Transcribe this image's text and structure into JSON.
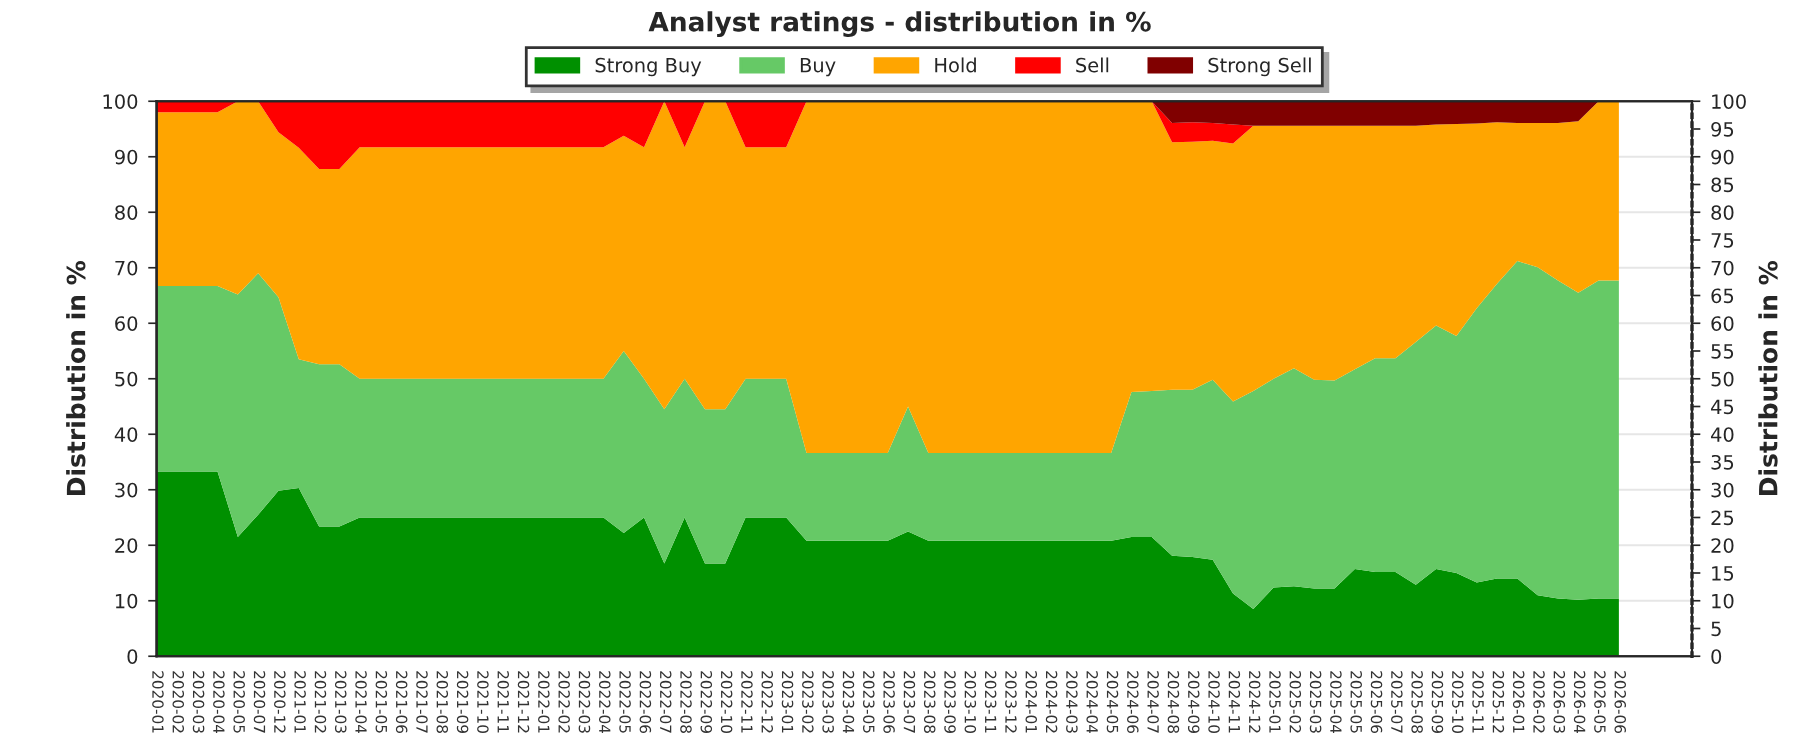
{
  "chart_data": {
    "type": "area",
    "stacked": true,
    "title": "Analyst ratings - distribution in %",
    "ylabel": "Distribution in %",
    "y2label": "Distribution in %",
    "categories": [
      "2020-01",
      "2020-02",
      "2020-03",
      "2020-04",
      "2020-05",
      "2020-07",
      "2020-12",
      "2021-01",
      "2021-02",
      "2021-03",
      "2021-04",
      "2021-05",
      "2021-06",
      "2021-07",
      "2021-08",
      "2021-09",
      "2021-10",
      "2021-11",
      "2021-12",
      "2022-01",
      "2022-02",
      "2022-03",
      "2022-04",
      "2022-05",
      "2022-06",
      "2022-07",
      "2022-08",
      "2022-09",
      "2022-10",
      "2022-11",
      "2022-12",
      "2023-01",
      "2023-02",
      "2023-03",
      "2023-04",
      "2023-05",
      "2023-06",
      "2023-07",
      "2023-08",
      "2023-09",
      "2023-10",
      "2023-11",
      "2023-12",
      "2024-01",
      "2024-02",
      "2024-03",
      "2024-04",
      "2024-05",
      "2024-06",
      "2024-07",
      "2024-08",
      "2024-09",
      "2024-10",
      "2024-11",
      "2024-12",
      "2025-01",
      "2025-02",
      "2025-03",
      "2025-04",
      "2025-05",
      "2025-06",
      "2025-07",
      "2025-08",
      "2025-09",
      "2025-10",
      "2025-11",
      "2025-12",
      "2026-01",
      "2026-02",
      "2026-03",
      "2026-04",
      "2026-05",
      "2026-06"
    ],
    "series": [
      {
        "name": "Strong Buy",
        "color": "#009000",
        "values": [
          33.3,
          33.3,
          33.3,
          33.3,
          21.5,
          25.5,
          29.8,
          30.3,
          23.4,
          23.4,
          25,
          25,
          25,
          25,
          25,
          25,
          25,
          25,
          25,
          25,
          25,
          25,
          25,
          22.2,
          25,
          16.7,
          25,
          16.7,
          16.7,
          25,
          25,
          25,
          20.8,
          20.8,
          20.8,
          20.8,
          20.8,
          22.5,
          20.8,
          20.8,
          20.8,
          20.8,
          20.8,
          20.8,
          20.8,
          20.8,
          20.8,
          20.8,
          21.5,
          21.5,
          18.1,
          17.9,
          17.4,
          11.3,
          8.5,
          12.4,
          12.6,
          12.2,
          12.2,
          15.7,
          15.2,
          15.2,
          12.9,
          15.7,
          15.0,
          13.3,
          14.0,
          14.0,
          11.0,
          10.4,
          10.2,
          10.4,
          10.4
        ]
      },
      {
        "name": "Buy",
        "color": "#66c966",
        "values": [
          33.4,
          33.4,
          33.4,
          33.4,
          43.7,
          43.5,
          34.9,
          23.2,
          29.2,
          29.2,
          25,
          25,
          25,
          25,
          25,
          25,
          25,
          25,
          25,
          25,
          25,
          25,
          25,
          32.8,
          25,
          27.8,
          25,
          27.8,
          27.8,
          25,
          25,
          25,
          15.8,
          15.8,
          15.8,
          15.8,
          15.8,
          22.5,
          15.8,
          15.8,
          15.8,
          15.8,
          15.8,
          15.8,
          15.8,
          15.8,
          15.8,
          15.8,
          26.1,
          26.3,
          29.9,
          30.1,
          32.4,
          34.6,
          39.3,
          37.6,
          39.3,
          37.6,
          37.5,
          36.0,
          38.5,
          38.5,
          43.7,
          43.9,
          42.7,
          49.4,
          53.1,
          57.2,
          59.1,
          57.3,
          55.3,
          57.3,
          57.3
        ]
      },
      {
        "name": "Hold",
        "color": "#ffa500",
        "values": [
          31.3,
          31.3,
          31.3,
          31.3,
          34.8,
          31.0,
          29.7,
          38.1,
          35.2,
          35.2,
          41.7,
          41.7,
          41.7,
          41.7,
          41.7,
          41.7,
          41.7,
          41.7,
          41.7,
          41.7,
          41.7,
          41.7,
          41.7,
          38.8,
          41.7,
          55.5,
          41.7,
          55.5,
          55.5,
          41.7,
          41.7,
          41.7,
          63.4,
          63.4,
          63.4,
          63.4,
          63.4,
          55.0,
          63.4,
          63.4,
          63.4,
          63.4,
          63.4,
          63.4,
          63.4,
          63.4,
          63.4,
          63.4,
          52.4,
          52.2,
          44.6,
          44.7,
          43.1,
          46.5,
          47.8,
          45.6,
          43.7,
          45.8,
          45.9,
          43.9,
          41.9,
          41.9,
          39.0,
          36.2,
          38.2,
          33.3,
          29.1,
          24.9,
          26.0,
          28.4,
          30.9,
          32.3,
          32.3
        ]
      },
      {
        "name": "Sell",
        "color": "#ff0000",
        "values": [
          2,
          2,
          2,
          2,
          0,
          0,
          5.6,
          8.4,
          12.2,
          12.2,
          8.3,
          8.3,
          8.3,
          8.3,
          8.3,
          8.3,
          8.3,
          8.3,
          8.3,
          8.3,
          8.3,
          8.3,
          8.3,
          6.2,
          8.3,
          0,
          8.3,
          0,
          0,
          8.3,
          8.3,
          8.3,
          0,
          0,
          0,
          0,
          0,
          0,
          0,
          0,
          0,
          0,
          0,
          0,
          0,
          0,
          0,
          0,
          0,
          0,
          3.5,
          3.5,
          3.2,
          3.4,
          0,
          0,
          0,
          0,
          0,
          0,
          0,
          0,
          0,
          0,
          0,
          0,
          0,
          0,
          0,
          0,
          0,
          0,
          0
        ]
      },
      {
        "name": "Strong Sell",
        "color": "#800000",
        "values": [
          0,
          0,
          0,
          0,
          0,
          0,
          0,
          0,
          0,
          0,
          0,
          0,
          0,
          0,
          0,
          0,
          0,
          0,
          0,
          0,
          0,
          0,
          0,
          0,
          0,
          0,
          0,
          0,
          0,
          0,
          0,
          0,
          0,
          0,
          0,
          0,
          0,
          0,
          0,
          0,
          0,
          0,
          0,
          0,
          0,
          0,
          0,
          0,
          0,
          0,
          3.9,
          3.8,
          3.9,
          4.2,
          4.4,
          4.4,
          4.4,
          4.4,
          4.4,
          4.4,
          4.4,
          4.4,
          4.4,
          4.2,
          4.1,
          4.0,
          3.8,
          3.9,
          3.9,
          3.9,
          3.6,
          0,
          0
        ]
      }
    ],
    "ylim": [
      0,
      100
    ],
    "yticks": [
      0,
      10,
      20,
      30,
      40,
      50,
      60,
      70,
      80,
      90,
      100
    ],
    "y2lim": [
      0,
      100
    ],
    "y2ticks": [
      0,
      5,
      10,
      15,
      20,
      25,
      30,
      35,
      40,
      45,
      50,
      55,
      60,
      65,
      70,
      75,
      80,
      85,
      90,
      95,
      100
    ],
    "grid": "y",
    "legend": "top"
  }
}
